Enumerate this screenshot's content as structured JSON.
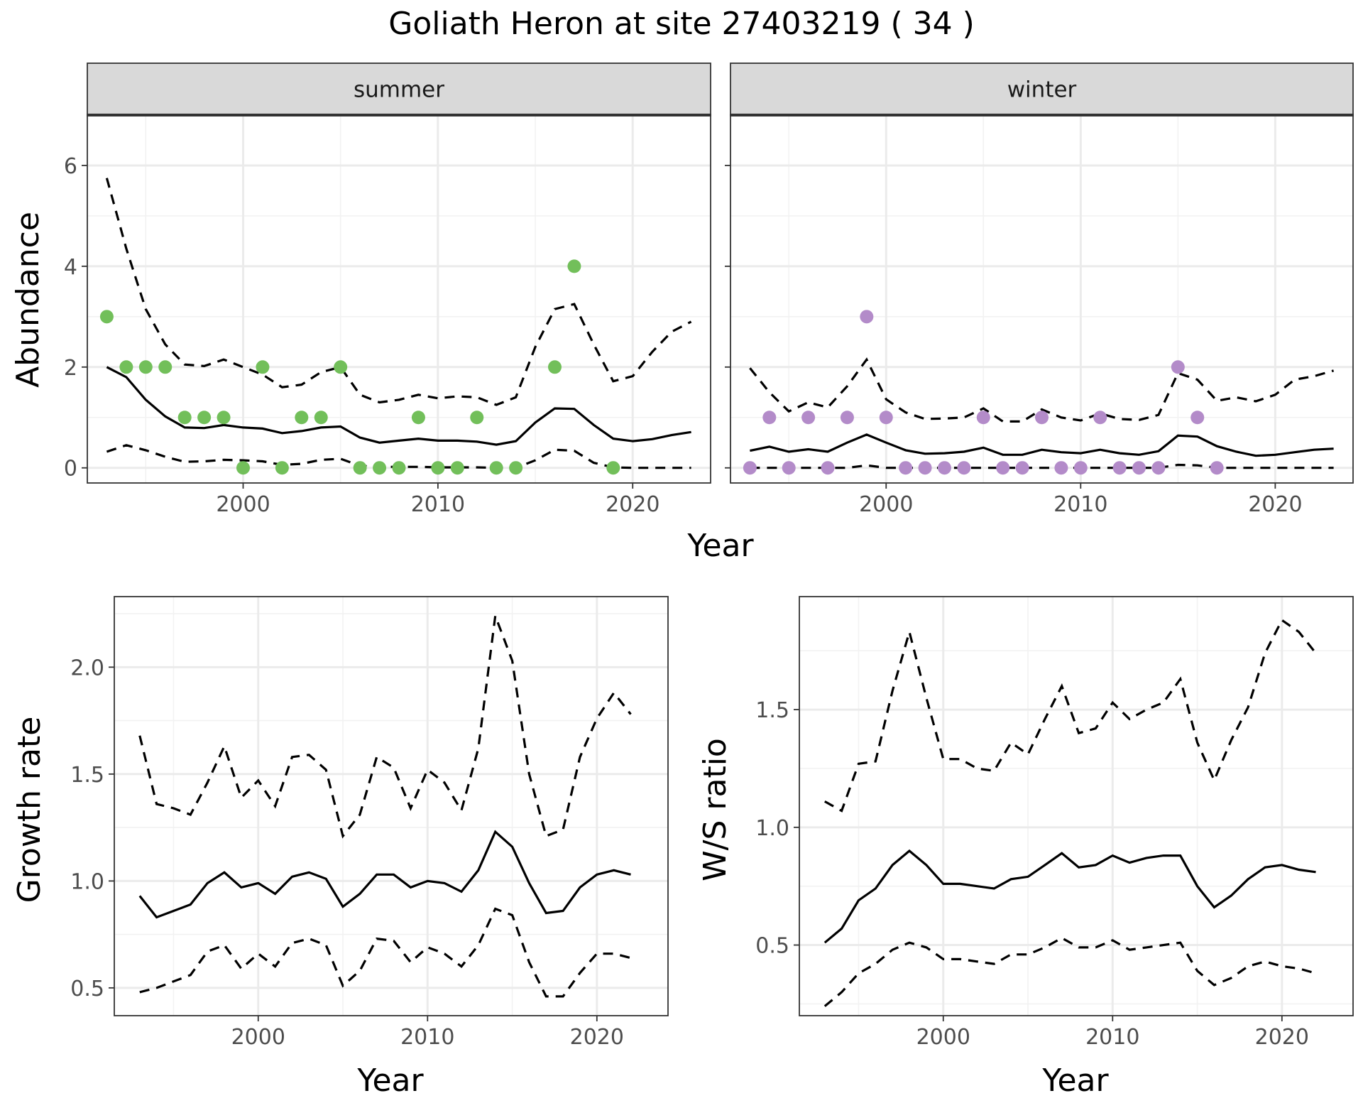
{
  "title": "Goliath Heron at site 27403219 ( 34 )",
  "colors": {
    "summer_points": "#72bf5a",
    "winter_points": "#b38bc9",
    "lines": "#000000",
    "strip_fill": "#d9d9d9"
  },
  "chart_data": [
    {
      "type": "line",
      "panel": "summer",
      "strip_label": "summer",
      "xlabel": "Year",
      "ylabel": "Abundance",
      "xlim": [
        1992,
        2024
      ],
      "ylim": [
        -0.3,
        7
      ],
      "xticks": [
        2000,
        2010,
        2020
      ],
      "yticks": [
        0,
        2,
        4,
        6
      ],
      "point_color": "#72bf5a",
      "points": {
        "x": [
          1993,
          1994,
          1995,
          1996,
          1997,
          1998,
          1999,
          2000,
          2001,
          2002,
          2003,
          2004,
          2005,
          2006,
          2007,
          2008,
          2009,
          2010,
          2011,
          2012,
          2013,
          2014,
          2016,
          2017,
          2019
        ],
        "y": [
          3,
          2,
          2,
          2,
          1,
          1,
          1,
          0,
          2,
          0,
          1,
          1,
          2,
          0,
          0,
          0,
          1,
          0,
          0,
          1,
          0,
          0,
          2,
          4,
          0
        ]
      },
      "x": [
        1993,
        1994,
        1995,
        1996,
        1997,
        1998,
        1999,
        2000,
        2001,
        2002,
        2003,
        2004,
        2005,
        2006,
        2007,
        2008,
        2009,
        2010,
        2011,
        2012,
        2013,
        2014,
        2015,
        2016,
        2017,
        2018,
        2019,
        2020,
        2021,
        2022,
        2023
      ],
      "series": [
        {
          "name": "",
          "style": "solid",
          "values": [
            2.0,
            1.8,
            1.35,
            1.02,
            0.8,
            0.79,
            0.85,
            0.8,
            0.78,
            0.69,
            0.73,
            0.8,
            0.82,
            0.6,
            0.5,
            0.54,
            0.58,
            0.54,
            0.54,
            0.52,
            0.46,
            0.53,
            0.9,
            1.18,
            1.17,
            0.85,
            0.58,
            0.53,
            0.57,
            0.65,
            0.71
          ]
        },
        {
          "name": "",
          "style": "dashed",
          "values": [
            5.75,
            4.35,
            3.15,
            2.45,
            2.05,
            2.02,
            2.15,
            2.0,
            1.85,
            1.6,
            1.65,
            1.9,
            2.0,
            1.45,
            1.3,
            1.35,
            1.45,
            1.38,
            1.42,
            1.4,
            1.25,
            1.4,
            2.4,
            3.15,
            3.25,
            2.45,
            1.72,
            1.82,
            2.3,
            2.7,
            2.9
          ]
        },
        {
          "name": "",
          "style": "dashed",
          "values": [
            0.32,
            0.45,
            0.35,
            0.22,
            0.12,
            0.13,
            0.16,
            0.15,
            0.13,
            0.06,
            0.08,
            0.16,
            0.18,
            0.04,
            0.02,
            0.02,
            0.02,
            0.01,
            0.01,
            0.01,
            0.0,
            0.0,
            0.15,
            0.36,
            0.34,
            0.1,
            0.01,
            0.0,
            0.0,
            0.0,
            0.0
          ]
        }
      ]
    },
    {
      "type": "line",
      "panel": "winter",
      "strip_label": "winter",
      "xlabel": "Year",
      "ylabel": "Abundance",
      "xlim": [
        1992,
        2024
      ],
      "ylim": [
        -0.3,
        7
      ],
      "xticks": [
        2000,
        2010,
        2020
      ],
      "yticks": [
        0,
        2,
        4,
        6
      ],
      "point_color": "#b38bc9",
      "points": {
        "x": [
          1993,
          1994,
          1995,
          1996,
          1997,
          1998,
          1999,
          2000,
          2001,
          2002,
          2003,
          2004,
          2005,
          2006,
          2007,
          2008,
          2009,
          2010,
          2011,
          2012,
          2013,
          2014,
          2015,
          2016,
          2017
        ],
        "y": [
          0,
          1,
          0,
          1,
          0,
          1,
          3,
          1,
          0,
          0,
          0,
          0,
          1,
          0,
          0,
          1,
          0,
          0,
          1,
          0,
          0,
          0,
          2,
          1,
          0
        ]
      },
      "x": [
        1993,
        1994,
        1995,
        1996,
        1997,
        1998,
        1999,
        2000,
        2001,
        2002,
        2003,
        2004,
        2005,
        2006,
        2007,
        2008,
        2009,
        2010,
        2011,
        2012,
        2013,
        2014,
        2015,
        2016,
        2017,
        2018,
        2019,
        2020,
        2021,
        2022,
        2023
      ],
      "series": [
        {
          "name": "",
          "style": "solid",
          "values": [
            0.34,
            0.42,
            0.32,
            0.37,
            0.32,
            0.5,
            0.66,
            0.5,
            0.35,
            0.28,
            0.29,
            0.32,
            0.4,
            0.26,
            0.26,
            0.36,
            0.31,
            0.29,
            0.36,
            0.29,
            0.26,
            0.33,
            0.64,
            0.62,
            0.43,
            0.32,
            0.24,
            0.26,
            0.31,
            0.36,
            0.38
          ]
        },
        {
          "name": "",
          "style": "dashed",
          "values": [
            1.98,
            1.5,
            1.12,
            1.3,
            1.2,
            1.62,
            2.15,
            1.36,
            1.1,
            0.97,
            0.98,
            1.0,
            1.18,
            0.92,
            0.92,
            1.16,
            1.0,
            0.94,
            1.08,
            0.97,
            0.95,
            1.05,
            1.88,
            1.75,
            1.33,
            1.4,
            1.32,
            1.45,
            1.75,
            1.82,
            1.93
          ]
        },
        {
          "name": "",
          "style": "dashed",
          "values": [
            0.0,
            0.0,
            0.0,
            0.0,
            0.0,
            0.0,
            0.05,
            0.0,
            0.0,
            0.0,
            0.0,
            0.0,
            0.0,
            0.0,
            0.0,
            0.0,
            0.0,
            0.0,
            0.0,
            0.0,
            0.0,
            0.0,
            0.06,
            0.05,
            0.0,
            0.0,
            0.0,
            0.0,
            0.0,
            0.0,
            0.0
          ]
        }
      ]
    },
    {
      "type": "line",
      "panel": "growth",
      "xlabel": "Year",
      "ylabel": "Growth rate",
      "xlim": [
        1991.5,
        2024.2
      ],
      "ylim": [
        0.37,
        2.33
      ],
      "xticks": [
        2000,
        2010,
        2020
      ],
      "yticks": [
        0.5,
        1.0,
        1.5,
        2.0
      ],
      "ytick_labels": [
        "0.5",
        "1.0",
        "1.5",
        "2.0"
      ],
      "x": [
        1993,
        1994,
        1995,
        1996,
        1997,
        1998,
        1999,
        2000,
        2001,
        2002,
        2003,
        2004,
        2005,
        2006,
        2007,
        2008,
        2009,
        2010,
        2011,
        2012,
        2013,
        2014,
        2015,
        2016,
        2017,
        2018,
        2019,
        2020,
        2021,
        2022
      ],
      "series": [
        {
          "name": "",
          "style": "solid",
          "values": [
            0.93,
            0.83,
            0.86,
            0.89,
            0.99,
            1.04,
            0.97,
            0.99,
            0.94,
            1.02,
            1.04,
            1.01,
            0.88,
            0.94,
            1.03,
            1.03,
            0.97,
            1.0,
            0.99,
            0.95,
            1.05,
            1.23,
            1.16,
            0.99,
            0.85,
            0.86,
            0.97,
            1.03,
            1.05,
            1.03
          ]
        },
        {
          "name": "",
          "style": "dashed",
          "values": [
            1.68,
            1.36,
            1.34,
            1.31,
            1.46,
            1.63,
            1.39,
            1.47,
            1.35,
            1.58,
            1.59,
            1.52,
            1.21,
            1.31,
            1.58,
            1.53,
            1.34,
            1.52,
            1.46,
            1.33,
            1.62,
            2.24,
            2.03,
            1.5,
            1.21,
            1.24,
            1.58,
            1.76,
            1.88,
            1.78
          ]
        },
        {
          "name": "",
          "style": "dashed",
          "values": [
            0.48,
            0.5,
            0.53,
            0.56,
            0.67,
            0.7,
            0.59,
            0.66,
            0.6,
            0.71,
            0.73,
            0.7,
            0.51,
            0.58,
            0.73,
            0.72,
            0.62,
            0.69,
            0.66,
            0.6,
            0.7,
            0.87,
            0.84,
            0.62,
            0.46,
            0.46,
            0.57,
            0.66,
            0.66,
            0.64
          ]
        }
      ]
    },
    {
      "type": "line",
      "panel": "ratio",
      "xlabel": "Year",
      "ylabel": "W/S ratio",
      "xlim": [
        1991.5,
        2024.2
      ],
      "ylim": [
        0.2,
        1.98
      ],
      "xticks": [
        2000,
        2010,
        2020
      ],
      "yticks": [
        0.5,
        1.0,
        1.5
      ],
      "ytick_labels": [
        "0.5",
        "1.0",
        "1.5"
      ],
      "x": [
        1993,
        1994,
        1995,
        1996,
        1997,
        1998,
        1999,
        2000,
        2001,
        2002,
        2003,
        2004,
        2005,
        2006,
        2007,
        2008,
        2009,
        2010,
        2011,
        2012,
        2013,
        2014,
        2015,
        2016,
        2017,
        2018,
        2019,
        2020,
        2021,
        2022
      ],
      "series": [
        {
          "name": "",
          "style": "solid",
          "values": [
            0.51,
            0.57,
            0.69,
            0.74,
            0.84,
            0.9,
            0.84,
            0.76,
            0.76,
            0.75,
            0.74,
            0.78,
            0.79,
            0.84,
            0.89,
            0.83,
            0.84,
            0.88,
            0.85,
            0.87,
            0.88,
            0.88,
            0.75,
            0.66,
            0.71,
            0.78,
            0.83,
            0.84,
            0.82,
            0.81
          ]
        },
        {
          "name": "",
          "style": "dashed",
          "values": [
            1.11,
            1.07,
            1.27,
            1.28,
            1.58,
            1.83,
            1.55,
            1.29,
            1.29,
            1.25,
            1.24,
            1.36,
            1.31,
            1.46,
            1.6,
            1.4,
            1.42,
            1.53,
            1.46,
            1.5,
            1.53,
            1.63,
            1.36,
            1.2,
            1.37,
            1.51,
            1.74,
            1.88,
            1.83,
            1.74
          ]
        },
        {
          "name": "",
          "style": "dashed",
          "values": [
            0.24,
            0.3,
            0.38,
            0.42,
            0.48,
            0.51,
            0.49,
            0.44,
            0.44,
            0.43,
            0.42,
            0.46,
            0.46,
            0.49,
            0.53,
            0.49,
            0.49,
            0.52,
            0.48,
            0.49,
            0.5,
            0.51,
            0.39,
            0.33,
            0.36,
            0.41,
            0.43,
            0.41,
            0.4,
            0.38
          ]
        }
      ]
    }
  ]
}
